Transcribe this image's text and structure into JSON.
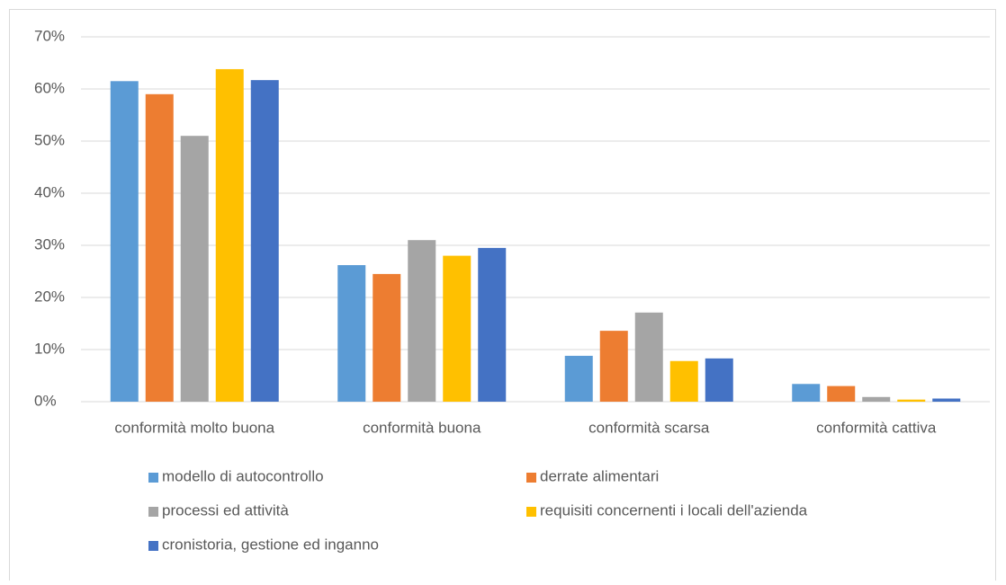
{
  "chart_data": {
    "type": "bar",
    "categories": [
      "conformità molto buona",
      "conformità buona",
      "conformità scarsa",
      "conformità cattiva"
    ],
    "series": [
      {
        "name": "modello di autocontrollo",
        "color": "#5b9bd5",
        "values": [
          61.5,
          26.2,
          8.8,
          3.4
        ]
      },
      {
        "name": "derrate alimentari",
        "color": "#ed7d31",
        "values": [
          59,
          24.5,
          13.6,
          3.0
        ]
      },
      {
        "name": "processi ed attività",
        "color": "#a5a5a5",
        "values": [
          51,
          31,
          17.1,
          0.9
        ]
      },
      {
        "name": "requisiti concernenti i locali dell'azienda",
        "color": "#ffc000",
        "values": [
          63.8,
          28,
          7.8,
          0.4
        ]
      },
      {
        "name": "cronistoria, gestione ed inganno",
        "color": "#4472c4",
        "values": [
          61.7,
          29.5,
          8.3,
          0.6
        ]
      }
    ],
    "ylim": [
      0,
      70
    ],
    "yticks": [
      {
        "value": 0,
        "label": "0%"
      },
      {
        "value": 10,
        "label": "10%"
      },
      {
        "value": 20,
        "label": "20%"
      },
      {
        "value": 30,
        "label": "30%"
      },
      {
        "value": 40,
        "label": "40%"
      },
      {
        "value": 50,
        "label": "50%"
      },
      {
        "value": 60,
        "label": "60%"
      },
      {
        "value": 70,
        "label": "70%"
      }
    ],
    "grid": true
  }
}
